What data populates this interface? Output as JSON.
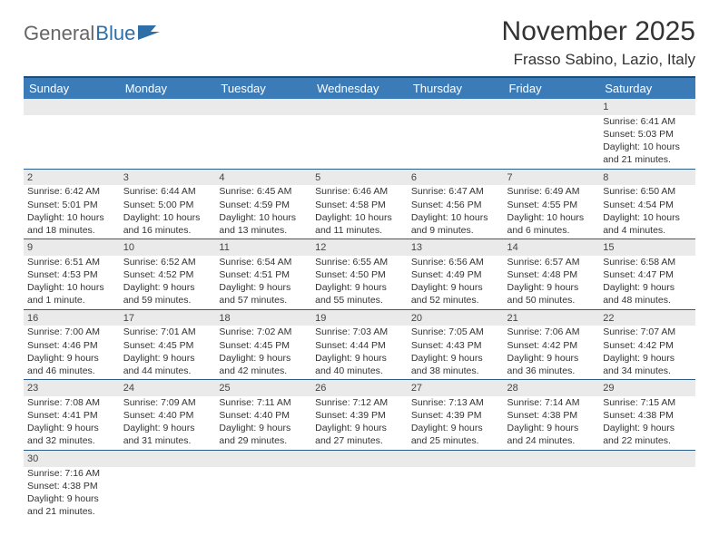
{
  "logo": {
    "general": "General",
    "blue": "Blue"
  },
  "title": "November 2025",
  "location": "Frasso Sabino, Lazio, Italy",
  "colors": {
    "header_bg": "#3b7cb8",
    "header_border_top": "#1a4d7a",
    "row_divider": "#2a5d8a",
    "daynum_bg": "#eaeaea",
    "text": "#333333"
  },
  "dayNames": [
    "Sunday",
    "Monday",
    "Tuesday",
    "Wednesday",
    "Thursday",
    "Friday",
    "Saturday"
  ],
  "weeks": [
    [
      {
        "n": "",
        "sunrise": "",
        "sunset": "",
        "daylight": ""
      },
      {
        "n": "",
        "sunrise": "",
        "sunset": "",
        "daylight": ""
      },
      {
        "n": "",
        "sunrise": "",
        "sunset": "",
        "daylight": ""
      },
      {
        "n": "",
        "sunrise": "",
        "sunset": "",
        "daylight": ""
      },
      {
        "n": "",
        "sunrise": "",
        "sunset": "",
        "daylight": ""
      },
      {
        "n": "",
        "sunrise": "",
        "sunset": "",
        "daylight": ""
      },
      {
        "n": "1",
        "sunrise": "Sunrise: 6:41 AM",
        "sunset": "Sunset: 5:03 PM",
        "daylight": "Daylight: 10 hours and 21 minutes."
      }
    ],
    [
      {
        "n": "2",
        "sunrise": "Sunrise: 6:42 AM",
        "sunset": "Sunset: 5:01 PM",
        "daylight": "Daylight: 10 hours and 18 minutes."
      },
      {
        "n": "3",
        "sunrise": "Sunrise: 6:44 AM",
        "sunset": "Sunset: 5:00 PM",
        "daylight": "Daylight: 10 hours and 16 minutes."
      },
      {
        "n": "4",
        "sunrise": "Sunrise: 6:45 AM",
        "sunset": "Sunset: 4:59 PM",
        "daylight": "Daylight: 10 hours and 13 minutes."
      },
      {
        "n": "5",
        "sunrise": "Sunrise: 6:46 AM",
        "sunset": "Sunset: 4:58 PM",
        "daylight": "Daylight: 10 hours and 11 minutes."
      },
      {
        "n": "6",
        "sunrise": "Sunrise: 6:47 AM",
        "sunset": "Sunset: 4:56 PM",
        "daylight": "Daylight: 10 hours and 9 minutes."
      },
      {
        "n": "7",
        "sunrise": "Sunrise: 6:49 AM",
        "sunset": "Sunset: 4:55 PM",
        "daylight": "Daylight: 10 hours and 6 minutes."
      },
      {
        "n": "8",
        "sunrise": "Sunrise: 6:50 AM",
        "sunset": "Sunset: 4:54 PM",
        "daylight": "Daylight: 10 hours and 4 minutes."
      }
    ],
    [
      {
        "n": "9",
        "sunrise": "Sunrise: 6:51 AM",
        "sunset": "Sunset: 4:53 PM",
        "daylight": "Daylight: 10 hours and 1 minute."
      },
      {
        "n": "10",
        "sunrise": "Sunrise: 6:52 AM",
        "sunset": "Sunset: 4:52 PM",
        "daylight": "Daylight: 9 hours and 59 minutes."
      },
      {
        "n": "11",
        "sunrise": "Sunrise: 6:54 AM",
        "sunset": "Sunset: 4:51 PM",
        "daylight": "Daylight: 9 hours and 57 minutes."
      },
      {
        "n": "12",
        "sunrise": "Sunrise: 6:55 AM",
        "sunset": "Sunset: 4:50 PM",
        "daylight": "Daylight: 9 hours and 55 minutes."
      },
      {
        "n": "13",
        "sunrise": "Sunrise: 6:56 AM",
        "sunset": "Sunset: 4:49 PM",
        "daylight": "Daylight: 9 hours and 52 minutes."
      },
      {
        "n": "14",
        "sunrise": "Sunrise: 6:57 AM",
        "sunset": "Sunset: 4:48 PM",
        "daylight": "Daylight: 9 hours and 50 minutes."
      },
      {
        "n": "15",
        "sunrise": "Sunrise: 6:58 AM",
        "sunset": "Sunset: 4:47 PM",
        "daylight": "Daylight: 9 hours and 48 minutes."
      }
    ],
    [
      {
        "n": "16",
        "sunrise": "Sunrise: 7:00 AM",
        "sunset": "Sunset: 4:46 PM",
        "daylight": "Daylight: 9 hours and 46 minutes."
      },
      {
        "n": "17",
        "sunrise": "Sunrise: 7:01 AM",
        "sunset": "Sunset: 4:45 PM",
        "daylight": "Daylight: 9 hours and 44 minutes."
      },
      {
        "n": "18",
        "sunrise": "Sunrise: 7:02 AM",
        "sunset": "Sunset: 4:45 PM",
        "daylight": "Daylight: 9 hours and 42 minutes."
      },
      {
        "n": "19",
        "sunrise": "Sunrise: 7:03 AM",
        "sunset": "Sunset: 4:44 PM",
        "daylight": "Daylight: 9 hours and 40 minutes."
      },
      {
        "n": "20",
        "sunrise": "Sunrise: 7:05 AM",
        "sunset": "Sunset: 4:43 PM",
        "daylight": "Daylight: 9 hours and 38 minutes."
      },
      {
        "n": "21",
        "sunrise": "Sunrise: 7:06 AM",
        "sunset": "Sunset: 4:42 PM",
        "daylight": "Daylight: 9 hours and 36 minutes."
      },
      {
        "n": "22",
        "sunrise": "Sunrise: 7:07 AM",
        "sunset": "Sunset: 4:42 PM",
        "daylight": "Daylight: 9 hours and 34 minutes."
      }
    ],
    [
      {
        "n": "23",
        "sunrise": "Sunrise: 7:08 AM",
        "sunset": "Sunset: 4:41 PM",
        "daylight": "Daylight: 9 hours and 32 minutes."
      },
      {
        "n": "24",
        "sunrise": "Sunrise: 7:09 AM",
        "sunset": "Sunset: 4:40 PM",
        "daylight": "Daylight: 9 hours and 31 minutes."
      },
      {
        "n": "25",
        "sunrise": "Sunrise: 7:11 AM",
        "sunset": "Sunset: 4:40 PM",
        "daylight": "Daylight: 9 hours and 29 minutes."
      },
      {
        "n": "26",
        "sunrise": "Sunrise: 7:12 AM",
        "sunset": "Sunset: 4:39 PM",
        "daylight": "Daylight: 9 hours and 27 minutes."
      },
      {
        "n": "27",
        "sunrise": "Sunrise: 7:13 AM",
        "sunset": "Sunset: 4:39 PM",
        "daylight": "Daylight: 9 hours and 25 minutes."
      },
      {
        "n": "28",
        "sunrise": "Sunrise: 7:14 AM",
        "sunset": "Sunset: 4:38 PM",
        "daylight": "Daylight: 9 hours and 24 minutes."
      },
      {
        "n": "29",
        "sunrise": "Sunrise: 7:15 AM",
        "sunset": "Sunset: 4:38 PM",
        "daylight": "Daylight: 9 hours and 22 minutes."
      }
    ],
    [
      {
        "n": "30",
        "sunrise": "Sunrise: 7:16 AM",
        "sunset": "Sunset: 4:38 PM",
        "daylight": "Daylight: 9 hours and 21 minutes."
      },
      {
        "n": "",
        "sunrise": "",
        "sunset": "",
        "daylight": ""
      },
      {
        "n": "",
        "sunrise": "",
        "sunset": "",
        "daylight": ""
      },
      {
        "n": "",
        "sunrise": "",
        "sunset": "",
        "daylight": ""
      },
      {
        "n": "",
        "sunrise": "",
        "sunset": "",
        "daylight": ""
      },
      {
        "n": "",
        "sunrise": "",
        "sunset": "",
        "daylight": ""
      },
      {
        "n": "",
        "sunrise": "",
        "sunset": "",
        "daylight": ""
      }
    ]
  ]
}
